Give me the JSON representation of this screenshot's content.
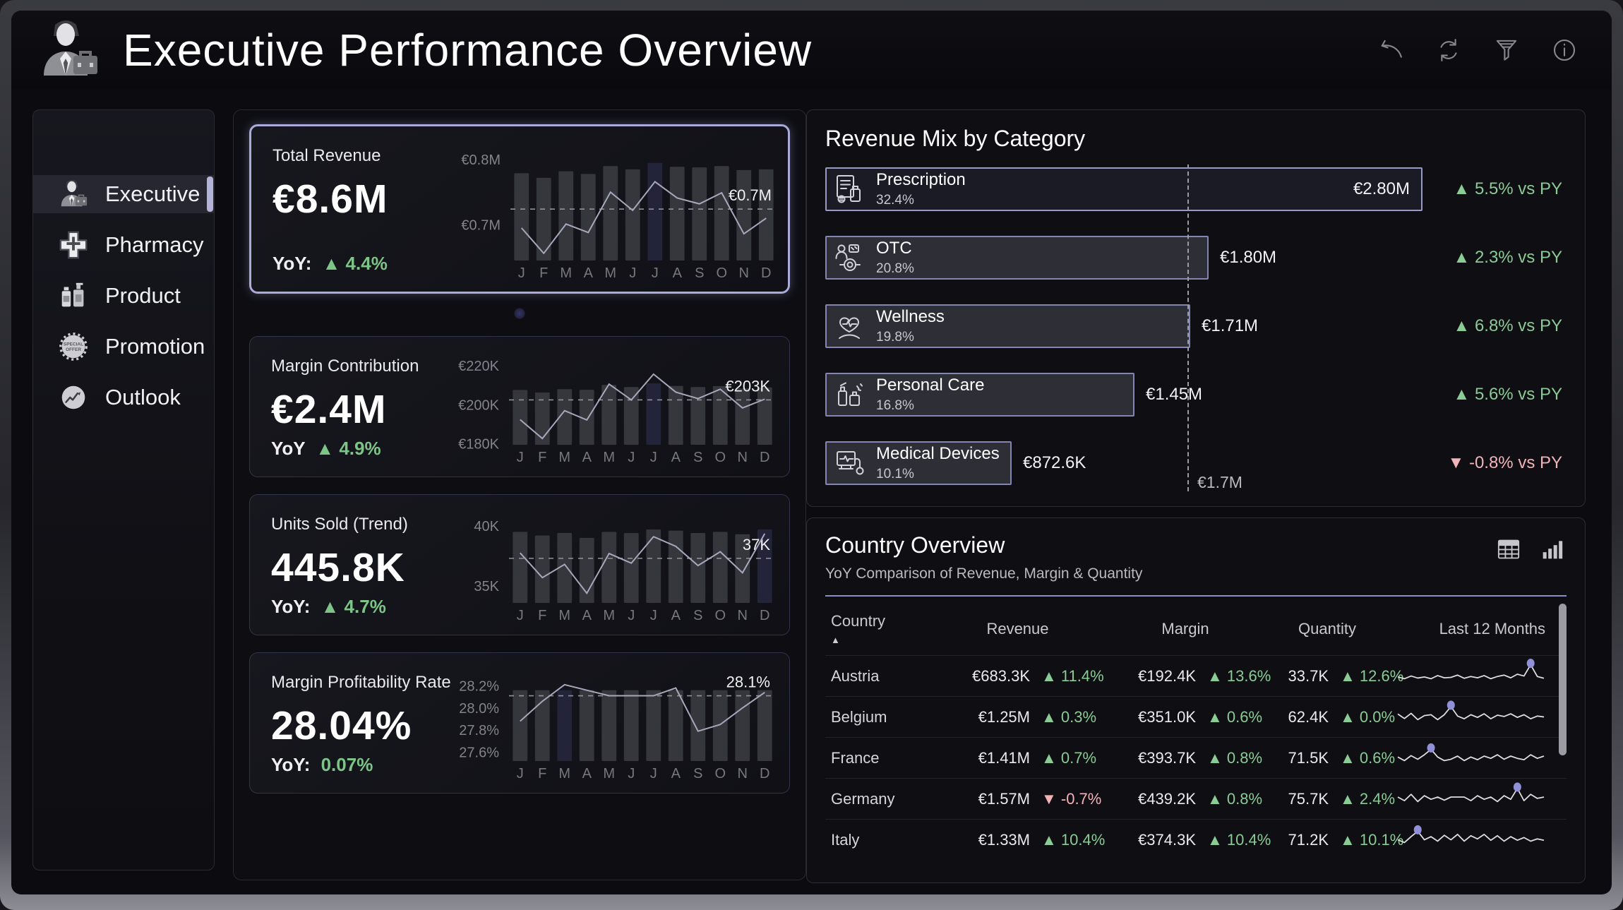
{
  "header": {
    "title": "Executive Performance Overview",
    "logo_icon": "businessman",
    "actions": [
      "undo",
      "refresh",
      "filter",
      "info"
    ]
  },
  "sidebar": {
    "items": [
      {
        "label": "Executive",
        "icon": "businessman",
        "selected": true
      },
      {
        "label": "Pharmacy",
        "icon": "pharmacy-cross",
        "selected": false
      },
      {
        "label": "Product",
        "icon": "product-bottles",
        "selected": false
      },
      {
        "label": "Promotion",
        "icon": "promotion-badge",
        "selected": false
      },
      {
        "label": "Outlook",
        "icon": "outlook-trend",
        "selected": false
      }
    ]
  },
  "kpi_cards": [
    {
      "title": "Total Revenue",
      "value": "€8.6M",
      "yoy_prefix": "YoY:",
      "yoy_change": "▲ 4.4%",
      "chart": {
        "type": "bar+line",
        "months": [
          "J",
          "F",
          "M",
          "A",
          "M",
          "J",
          "J",
          "A",
          "S",
          "O",
          "N",
          "D"
        ],
        "bars": [
          0.779,
          0.772,
          0.782,
          0.778,
          0.79,
          0.785,
          0.795,
          0.789,
          0.788,
          0.79,
          0.784,
          0.785
        ],
        "line": [
          0.695,
          0.656,
          0.701,
          0.688,
          0.75,
          0.722,
          0.766,
          0.741,
          0.732,
          0.749,
          0.686,
          0.71
        ],
        "ylim": [
          0.645,
          0.812
        ],
        "ticks": [
          {
            "v": 0.8,
            "label": "€0.8M"
          },
          {
            "v": 0.7,
            "label": "€0.7M"
          }
        ],
        "ref": {
          "v": 0.724,
          "label": "€0.7M"
        },
        "highlight_index": 6
      }
    },
    {
      "title": "Margin Contribution",
      "value": "€2.4M",
      "yoy_prefix": "YoY",
      "yoy_change": "▲ 4.9%",
      "chart": {
        "type": "bar+line",
        "months": [
          "J",
          "F",
          "M",
          "A",
          "M",
          "J",
          "J",
          "A",
          "S",
          "O",
          "N",
          "D"
        ],
        "bars": [
          207.6,
          206.3,
          208.0,
          207.7,
          210.2,
          209.1,
          211.0,
          209.7,
          209.1,
          209.6,
          208.4,
          208.9
        ],
        "line": [
          192.4,
          182.7,
          197.0,
          192.2,
          210.6,
          202.5,
          215.7,
          206.5,
          203.2,
          208.0,
          198.4,
          202.9
        ],
        "ylim": [
          179.5,
          221.5
        ],
        "ticks": [
          {
            "v": 220,
            "label": "€220K"
          },
          {
            "v": 200,
            "label": "€200K"
          },
          {
            "v": 180,
            "label": "€180K"
          }
        ],
        "ref": {
          "v": 202.5,
          "label": "€203K"
        },
        "highlight_index": 6
      }
    },
    {
      "title": "Units Sold (Trend)",
      "value": "445.8K",
      "yoy_prefix": "YoY:",
      "yoy_change": "▲ 4.7%",
      "chart": {
        "type": "bar+line",
        "months": [
          "J",
          "F",
          "M",
          "A",
          "M",
          "J",
          "J",
          "A",
          "S",
          "O",
          "N",
          "D"
        ],
        "bars": [
          39.5,
          39.2,
          39.4,
          39.0,
          39.5,
          39.4,
          39.7,
          39.6,
          39.4,
          39.5,
          39.3,
          39.7
        ],
        "line": [
          37.75,
          35.7,
          36.8,
          34.4,
          37.7,
          36.9,
          39.1,
          38.3,
          36.7,
          37.85,
          36.1,
          39.35
        ],
        "ylim": [
          33.6,
          40.4
        ],
        "ticks": [
          {
            "v": 40,
            "label": "40K"
          },
          {
            "v": 35,
            "label": "35K"
          }
        ],
        "ref": {
          "v": 37.3,
          "label": "37K"
        },
        "highlight_index": 11
      }
    },
    {
      "title": "Margin Profitability Rate",
      "value": "28.04%",
      "yoy_prefix": "YoY:",
      "yoy_change": "0.07%",
      "chart": {
        "type": "bar+line",
        "months": [
          "J",
          "F",
          "M",
          "A",
          "M",
          "J",
          "J",
          "A",
          "S",
          "O",
          "N",
          "D"
        ],
        "bars": [
          28.16,
          28.16,
          28.16,
          28.16,
          28.16,
          28.16,
          28.16,
          28.16,
          28.16,
          28.16,
          28.16,
          28.16
        ],
        "line": [
          27.88,
          28.06,
          28.21,
          28.16,
          28.11,
          28.11,
          28.11,
          28.18,
          27.79,
          27.85,
          28.0,
          28.14
        ],
        "ylim": [
          27.52,
          28.26
        ],
        "ticks": [
          {
            "v": 28.2,
            "label": "28.2%"
          },
          {
            "v": 28.0,
            "label": "28.0%"
          },
          {
            "v": 27.8,
            "label": "27.8%"
          },
          {
            "v": 27.6,
            "label": "27.6%"
          }
        ],
        "ref": {
          "v": 28.11,
          "label": "28.1%"
        },
        "highlight_index": 2
      }
    }
  ],
  "revenue_mix": {
    "title": "Revenue Mix by Category",
    "ref": {
      "label": "€1.7M",
      "value_meur": 1.7
    },
    "rows": [
      {
        "name": "Prescription",
        "icon": "rx-doc",
        "pct_label": "32.4%",
        "pct": 32.4,
        "value_label": "€2.80M",
        "value_meur": 2.8,
        "change": "▲ 5.5% vs PY",
        "dir": "up",
        "value_inside": true,
        "dark_bar": true
      },
      {
        "name": "OTC",
        "icon": "otc-people",
        "pct_label": "20.8%",
        "pct": 20.8,
        "value_label": "€1.80M",
        "value_meur": 1.8,
        "change": "▲ 2.3% vs PY",
        "dir": "up",
        "value_inside": false,
        "dark_bar": false
      },
      {
        "name": "Wellness",
        "icon": "heart-hand",
        "pct_label": "19.8%",
        "pct": 19.8,
        "value_label": "€1.71M",
        "value_meur": 1.71,
        "change": "▲ 6.8% vs PY",
        "dir": "up",
        "value_inside": false,
        "dark_bar": false
      },
      {
        "name": "Personal Care",
        "icon": "care-bottle",
        "pct_label": "16.8%",
        "pct": 16.8,
        "value_label": "€1.45M",
        "value_meur": 1.45,
        "change": "▲ 5.6% vs PY",
        "dir": "up",
        "value_inside": false,
        "dark_bar": false
      },
      {
        "name": "Medical Devices",
        "icon": "med-monitor",
        "pct_label": "10.1%",
        "pct": 10.1,
        "value_label": "€872.6K",
        "value_meur": 0.8726,
        "change": "▼ -0.8% vs PY",
        "dir": "down",
        "value_inside": false,
        "dark_bar": false
      }
    ]
  },
  "country_overview": {
    "title": "Country Overview",
    "subtitle": "YoY Comparison of Revenue, Margin & Quantity",
    "view_icons": [
      "table",
      "bar-chart"
    ],
    "columns": [
      "Country",
      "Revenue",
      "Margin",
      "Quantity",
      "Last 12 Months"
    ],
    "sort_indicator": "▲",
    "rows": [
      {
        "country": "Austria",
        "revenue": "€683.3K",
        "revenue_change": "▲ 11.4%",
        "revenue_dir": "up",
        "margin": "€192.4K",
        "margin_change": "▲ 13.6%",
        "margin_dir": "up",
        "quantity": "33.7K",
        "quantity_change": "▲ 12.6%",
        "quantity_dir": "up",
        "spark": [
          0.38,
          0.3,
          0.42,
          0.33,
          0.38,
          0.3,
          0.44,
          0.34,
          0.36,
          0.46,
          0.32,
          0.4,
          0.34,
          0.44,
          0.3,
          0.4,
          0.46,
          0.34,
          0.5,
          0.42,
          0.92,
          0.4,
          0.32
        ],
        "dot_index": 20
      },
      {
        "country": "Belgium",
        "revenue": "€1.25M",
        "revenue_change": "▲ 0.3%",
        "revenue_dir": "up",
        "margin": "€351.0K",
        "margin_change": "▲ 0.6%",
        "margin_dir": "up",
        "quantity": "62.4K",
        "quantity_change": "▲ 0.0%",
        "quantity_dir": "up",
        "spark": [
          0.55,
          0.35,
          0.58,
          0.3,
          0.48,
          0.52,
          0.3,
          0.52,
          0.88,
          0.46,
          0.34,
          0.52,
          0.4,
          0.56,
          0.34,
          0.5,
          0.44,
          0.56,
          0.4,
          0.52,
          0.34,
          0.46,
          0.42
        ],
        "dot_index": 8
      },
      {
        "country": "France",
        "revenue": "€1.41M",
        "revenue_change": "▲ 0.7%",
        "revenue_dir": "up",
        "margin": "€393.7K",
        "margin_change": "▲ 0.8%",
        "margin_dir": "up",
        "quantity": "71.5K",
        "quantity_change": "▲ 0.6%",
        "quantity_dir": "up",
        "spark": [
          0.46,
          0.3,
          0.52,
          0.36,
          0.56,
          0.8,
          0.46,
          0.3,
          0.36,
          0.5,
          0.3,
          0.46,
          0.34,
          0.5,
          0.4,
          0.56,
          0.36,
          0.5,
          0.4,
          0.34,
          0.56,
          0.4,
          0.5
        ],
        "dot_index": 5
      },
      {
        "country": "Germany",
        "revenue": "€1.57M",
        "revenue_change": "▼ -0.7%",
        "revenue_dir": "down",
        "margin": "€439.2K",
        "margin_change": "▲ 0.8%",
        "margin_dir": "up",
        "quantity": "75.7K",
        "quantity_change": "▲ 2.4%",
        "quantity_dir": "up",
        "spark": [
          0.5,
          0.34,
          0.62,
          0.3,
          0.56,
          0.4,
          0.5,
          0.36,
          0.5,
          0.5,
          0.5,
          0.34,
          0.56,
          0.4,
          0.5,
          0.3,
          0.56,
          0.4,
          0.88,
          0.34,
          0.62,
          0.44,
          0.5
        ],
        "dot_index": 18
      },
      {
        "country": "Italy",
        "revenue": "€1.33M",
        "revenue_change": "▲ 10.4%",
        "revenue_dir": "up",
        "margin": "€374.3K",
        "margin_change": "▲ 10.4%",
        "margin_dir": "up",
        "quantity": "71.2K",
        "quantity_change": "▲ 10.1%",
        "quantity_dir": "up",
        "spark": [
          0.42,
          0.3,
          0.56,
          0.8,
          0.42,
          0.56,
          0.36,
          0.62,
          0.42,
          0.66,
          0.36,
          0.6,
          0.46,
          0.66,
          0.4,
          0.6,
          0.36,
          0.56,
          0.4,
          0.52,
          0.36,
          0.46,
          0.4
        ],
        "dot_index": 3
      }
    ]
  },
  "colors": {
    "accent_lavender": "#aaaadb",
    "positive_green": "#8bcb96",
    "negative_pink": "#f2b4b9",
    "bar_gray": "#36363d",
    "bar_highlight": "#23233a",
    "line_lavender": "#a8a8bd",
    "spark_dot": "#8f90d8"
  }
}
